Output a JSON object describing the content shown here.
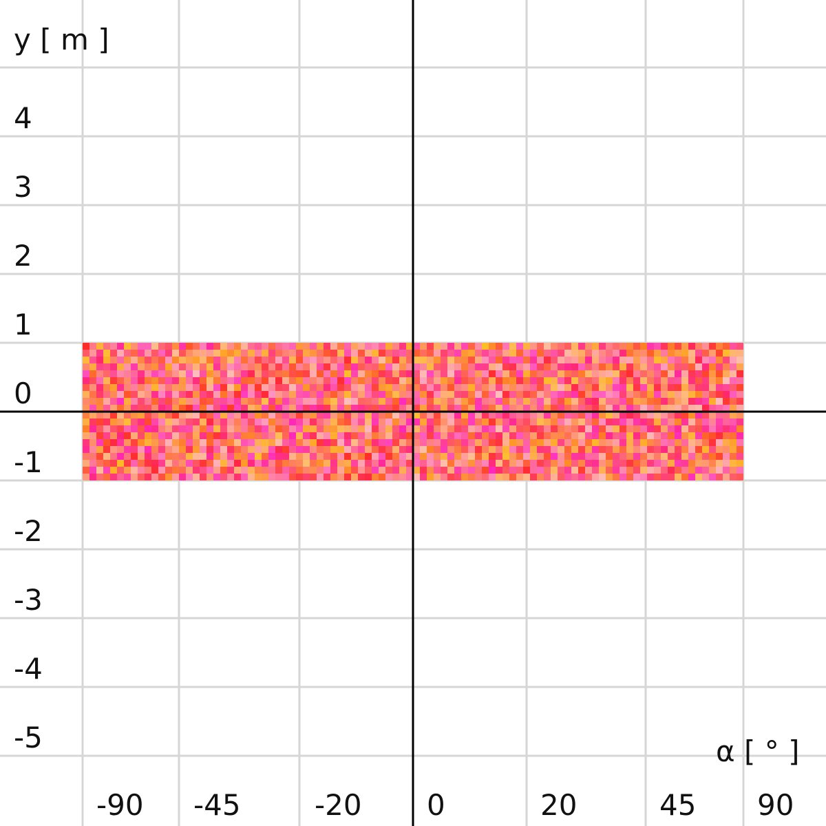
{
  "chart_data": {
    "type": "heatmap",
    "xlabel": "α [ ° ]",
    "ylabel": "y [ m ]",
    "x_ticks": [
      "-90",
      "-45",
      "-20",
      "0",
      "20",
      "45",
      "90"
    ],
    "y_ticks": [
      "4",
      "3",
      "2",
      "1",
      "0",
      "-1",
      "-2",
      "-3",
      "-4",
      "-5"
    ],
    "x_tick_values": [
      -90,
      -45,
      -20,
      0,
      20,
      45,
      90
    ],
    "y_tick_values": [
      4,
      3,
      2,
      1,
      0,
      -1,
      -2,
      -3,
      -4,
      -5
    ],
    "grid": true,
    "band": {
      "x_range": [
        -90,
        90
      ],
      "y_range": [
        -1,
        1
      ],
      "color": "#ff2020",
      "texture": "random pixel noise"
    },
    "colors": {
      "axis": "#000000",
      "grid": "#d6d6d6",
      "band": "#ff2020"
    }
  }
}
